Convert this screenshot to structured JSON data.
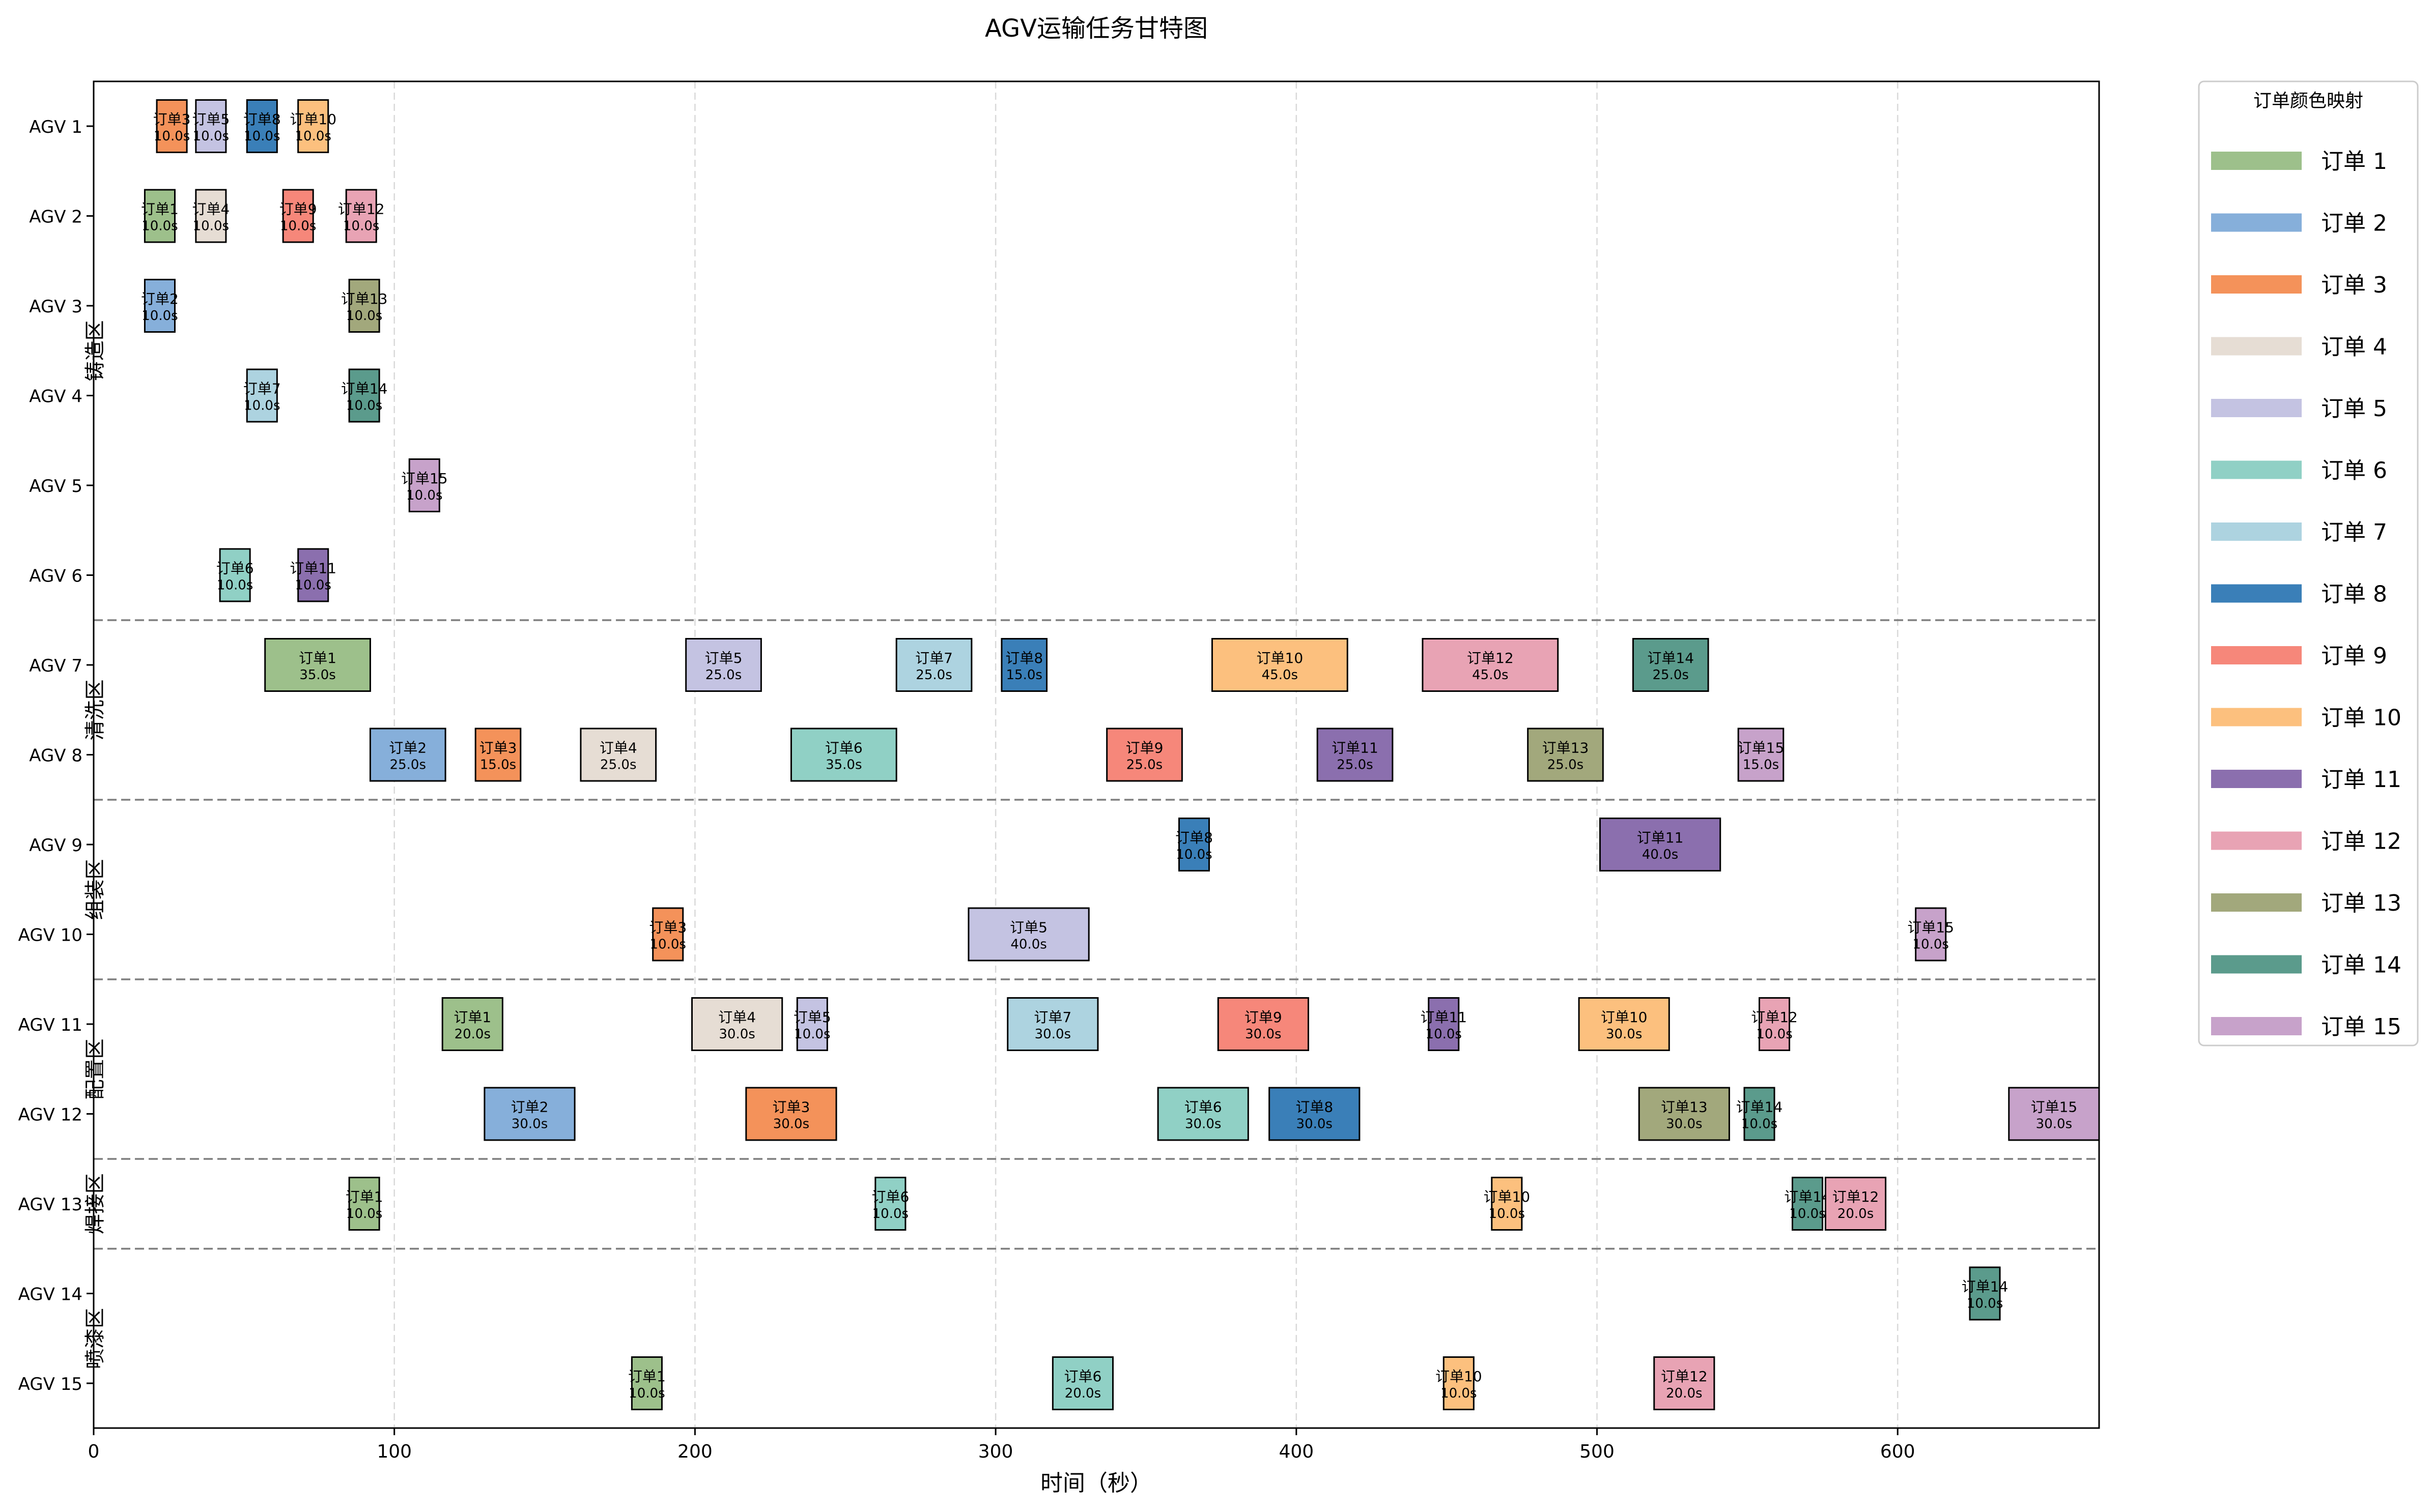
{
  "chart_data": {
    "type": "gantt",
    "title": "AGV运输任务甘特图",
    "xlabel": "时间（秒）",
    "ylabel": "",
    "xlim": [
      0,
      667
    ],
    "x_ticks": [
      0,
      100,
      200,
      300,
      400,
      500,
      600
    ],
    "grid": "vertical dashed",
    "legend": {
      "title": "订单颜色映射",
      "placement": "right",
      "entries": [
        {
          "order": 1,
          "label": "订单 1",
          "color": "#9dc08b"
        },
        {
          "order": 2,
          "label": "订单 2",
          "color": "#86afda"
        },
        {
          "order": 3,
          "label": "订单 3",
          "color": "#f4925a"
        },
        {
          "order": 4,
          "label": "订单 4",
          "color": "#e6ddd4"
        },
        {
          "order": 5,
          "label": "订单 5",
          "color": "#c4c3e2"
        },
        {
          "order": 6,
          "label": "订单 6",
          "color": "#90d0c5"
        },
        {
          "order": 7,
          "label": "订单 7",
          "color": "#add3e0"
        },
        {
          "order": 8,
          "label": "订单 8",
          "color": "#3a7fb8"
        },
        {
          "order": 9,
          "label": "订单 9",
          "color": "#f6877a"
        },
        {
          "order": 10,
          "label": "订单 10",
          "color": "#fcc07e"
        },
        {
          "order": 11,
          "label": "订单 11",
          "color": "#8b6fae"
        },
        {
          "order": 12,
          "label": "订单 12",
          "color": "#e8a3b4"
        },
        {
          "order": 13,
          "label": "订单 13",
          "color": "#a2a87c"
        },
        {
          "order": 14,
          "label": "订单 14",
          "color": "#5b9b8c"
        },
        {
          "order": 15,
          "label": "订单 15",
          "color": "#c7a2ca"
        }
      ]
    },
    "agvs": [
      "AGV 1",
      "AGV 2",
      "AGV 3",
      "AGV 4",
      "AGV 5",
      "AGV 6",
      "AGV 7",
      "AGV 8",
      "AGV 9",
      "AGV 10",
      "AGV 11",
      "AGV 12",
      "AGV 13",
      "AGV 14",
      "AGV 15"
    ],
    "zones": [
      {
        "name": "铸造区",
        "rows": [
          1,
          6
        ]
      },
      {
        "name": "清洗区",
        "rows": [
          7,
          8
        ]
      },
      {
        "name": "组装区",
        "rows": [
          9,
          10
        ]
      },
      {
        "name": "配置区",
        "rows": [
          11,
          12
        ]
      },
      {
        "name": "焊接区",
        "rows": [
          13,
          13
        ]
      },
      {
        "name": "喷漆区",
        "rows": [
          14,
          15
        ]
      }
    ],
    "tasks": [
      {
        "agv": 1,
        "order": 3,
        "start": 21,
        "duration": 10,
        "label": "订单3",
        "duration_label": "10.0s"
      },
      {
        "agv": 1,
        "order": 5,
        "start": 34,
        "duration": 10,
        "label": "订单5",
        "duration_label": "10.0s"
      },
      {
        "agv": 1,
        "order": 8,
        "start": 51,
        "duration": 10,
        "label": "订单8",
        "duration_label": "10.0s"
      },
      {
        "agv": 1,
        "order": 10,
        "start": 68,
        "duration": 10,
        "label": "订单10",
        "duration_label": "10.0s"
      },
      {
        "agv": 2,
        "order": 1,
        "start": 17,
        "duration": 10,
        "label": "订单1",
        "duration_label": "10.0s"
      },
      {
        "agv": 2,
        "order": 4,
        "start": 34,
        "duration": 10,
        "label": "订单4",
        "duration_label": "10.0s"
      },
      {
        "agv": 2,
        "order": 9,
        "start": 63,
        "duration": 10,
        "label": "订单9",
        "duration_label": "10.0s"
      },
      {
        "agv": 2,
        "order": 12,
        "start": 84,
        "duration": 10,
        "label": "订单12",
        "duration_label": "10.0s"
      },
      {
        "agv": 3,
        "order": 2,
        "start": 17,
        "duration": 10,
        "label": "订单2",
        "duration_label": "10.0s"
      },
      {
        "agv": 3,
        "order": 13,
        "start": 85,
        "duration": 10,
        "label": "订单13",
        "duration_label": "10.0s"
      },
      {
        "agv": 4,
        "order": 7,
        "start": 51,
        "duration": 10,
        "label": "订单7",
        "duration_label": "10.0s"
      },
      {
        "agv": 4,
        "order": 14,
        "start": 85,
        "duration": 10,
        "label": "订单14",
        "duration_label": "10.0s"
      },
      {
        "agv": 5,
        "order": 15,
        "start": 105,
        "duration": 10,
        "label": "订单15",
        "duration_label": "10.0s"
      },
      {
        "agv": 6,
        "order": 6,
        "start": 42,
        "duration": 10,
        "label": "订单6",
        "duration_label": "10.0s"
      },
      {
        "agv": 6,
        "order": 11,
        "start": 68,
        "duration": 10,
        "label": "订单11",
        "duration_label": "10.0s"
      },
      {
        "agv": 7,
        "order": 1,
        "start": 57,
        "duration": 35,
        "label": "订单1",
        "duration_label": "35.0s"
      },
      {
        "agv": 7,
        "order": 5,
        "start": 197,
        "duration": 25,
        "label": "订单5",
        "duration_label": "25.0s"
      },
      {
        "agv": 7,
        "order": 7,
        "start": 267,
        "duration": 25,
        "label": "订单7",
        "duration_label": "25.0s"
      },
      {
        "agv": 7,
        "order": 8,
        "start": 302,
        "duration": 15,
        "label": "订单8",
        "duration_label": "15.0s"
      },
      {
        "agv": 7,
        "order": 10,
        "start": 372,
        "duration": 45,
        "label": "订单10",
        "duration_label": "45.0s"
      },
      {
        "agv": 7,
        "order": 12,
        "start": 442,
        "duration": 45,
        "label": "订单12",
        "duration_label": "45.0s"
      },
      {
        "agv": 7,
        "order": 14,
        "start": 512,
        "duration": 25,
        "label": "订单14",
        "duration_label": "25.0s"
      },
      {
        "agv": 8,
        "order": 2,
        "start": 92,
        "duration": 25,
        "label": "订单2",
        "duration_label": "25.0s"
      },
      {
        "agv": 8,
        "order": 3,
        "start": 127,
        "duration": 15,
        "label": "订单3",
        "duration_label": "15.0s"
      },
      {
        "agv": 8,
        "order": 4,
        "start": 162,
        "duration": 25,
        "label": "订单4",
        "duration_label": "25.0s"
      },
      {
        "agv": 8,
        "order": 6,
        "start": 232,
        "duration": 35,
        "label": "订单6",
        "duration_label": "35.0s"
      },
      {
        "agv": 8,
        "order": 9,
        "start": 337,
        "duration": 25,
        "label": "订单9",
        "duration_label": "25.0s"
      },
      {
        "agv": 8,
        "order": 11,
        "start": 407,
        "duration": 25,
        "label": "订单11",
        "duration_label": "25.0s"
      },
      {
        "agv": 8,
        "order": 13,
        "start": 477,
        "duration": 25,
        "label": "订单13",
        "duration_label": "25.0s"
      },
      {
        "agv": 8,
        "order": 15,
        "start": 547,
        "duration": 15,
        "label": "订单15",
        "duration_label": "15.0s"
      },
      {
        "agv": 9,
        "order": 8,
        "start": 361,
        "duration": 10,
        "label": "订单8",
        "duration_label": "10.0s"
      },
      {
        "agv": 9,
        "order": 11,
        "start": 501,
        "duration": 40,
        "label": "订单11",
        "duration_label": "40.0s"
      },
      {
        "agv": 10,
        "order": 3,
        "start": 186,
        "duration": 10,
        "label": "订单3",
        "duration_label": "10.0s"
      },
      {
        "agv": 10,
        "order": 5,
        "start": 291,
        "duration": 40,
        "label": "订单5",
        "duration_label": "40.0s"
      },
      {
        "agv": 10,
        "order": 15,
        "start": 606,
        "duration": 10,
        "label": "订单15",
        "duration_label": "10.0s"
      },
      {
        "agv": 11,
        "order": 1,
        "start": 116,
        "duration": 20,
        "label": "订单1",
        "duration_label": "20.0s"
      },
      {
        "agv": 11,
        "order": 4,
        "start": 199,
        "duration": 30,
        "label": "订单4",
        "duration_label": "30.0s"
      },
      {
        "agv": 11,
        "order": 5,
        "start": 234,
        "duration": 10,
        "label": "订单5",
        "duration_label": "10.0s"
      },
      {
        "agv": 11,
        "order": 7,
        "start": 304,
        "duration": 30,
        "label": "订单7",
        "duration_label": "30.0s"
      },
      {
        "agv": 11,
        "order": 9,
        "start": 374,
        "duration": 30,
        "label": "订单9",
        "duration_label": "30.0s"
      },
      {
        "agv": 11,
        "order": 11,
        "start": 444,
        "duration": 10,
        "label": "订单11",
        "duration_label": "10.0s"
      },
      {
        "agv": 11,
        "order": 10,
        "start": 494,
        "duration": 30,
        "label": "订单10",
        "duration_label": "30.0s"
      },
      {
        "agv": 11,
        "order": 12,
        "start": 554,
        "duration": 10,
        "label": "订单12",
        "duration_label": "10.0s"
      },
      {
        "agv": 12,
        "order": 2,
        "start": 130,
        "duration": 30,
        "label": "订单2",
        "duration_label": "30.0s"
      },
      {
        "agv": 12,
        "order": 3,
        "start": 217,
        "duration": 30,
        "label": "订单3",
        "duration_label": "30.0s"
      },
      {
        "agv": 12,
        "order": 6,
        "start": 354,
        "duration": 30,
        "label": "订单6",
        "duration_label": "30.0s"
      },
      {
        "agv": 12,
        "order": 8,
        "start": 391,
        "duration": 30,
        "label": "订单8",
        "duration_label": "30.0s"
      },
      {
        "agv": 12,
        "order": 13,
        "start": 514,
        "duration": 30,
        "label": "订单13",
        "duration_label": "30.0s"
      },
      {
        "agv": 12,
        "order": 14,
        "start": 549,
        "duration": 10,
        "label": "订单14",
        "duration_label": "10.0s"
      },
      {
        "agv": 12,
        "order": 15,
        "start": 637,
        "duration": 30,
        "label": "订单15",
        "duration_label": "30.0s"
      },
      {
        "agv": 13,
        "order": 1,
        "start": 85,
        "duration": 10,
        "label": "订单1",
        "duration_label": "10.0s"
      },
      {
        "agv": 13,
        "order": 6,
        "start": 260,
        "duration": 10,
        "label": "订单6",
        "duration_label": "10.0s"
      },
      {
        "agv": 13,
        "order": 10,
        "start": 465,
        "duration": 10,
        "label": "订单10",
        "duration_label": "10.0s"
      },
      {
        "agv": 13,
        "order": 14,
        "start": 565,
        "duration": 10,
        "label": "订单14",
        "duration_label": "10.0s"
      },
      {
        "agv": 13,
        "order": 12,
        "start": 576,
        "duration": 20,
        "label": "订单12",
        "duration_label": "20.0s"
      },
      {
        "agv": 14,
        "order": 14,
        "start": 624,
        "duration": 10,
        "label": "订单14",
        "duration_label": "10.0s"
      },
      {
        "agv": 15,
        "order": 1,
        "start": 179,
        "duration": 10,
        "label": "订单1",
        "duration_label": "10.0s"
      },
      {
        "agv": 15,
        "order": 6,
        "start": 319,
        "duration": 20,
        "label": "订单6",
        "duration_label": "20.0s"
      },
      {
        "agv": 15,
        "order": 10,
        "start": 449,
        "duration": 10,
        "label": "订单10",
        "duration_label": "10.0s"
      },
      {
        "agv": 15,
        "order": 12,
        "start": 519,
        "duration": 20,
        "label": "订单12",
        "duration_label": "20.0s"
      }
    ]
  }
}
